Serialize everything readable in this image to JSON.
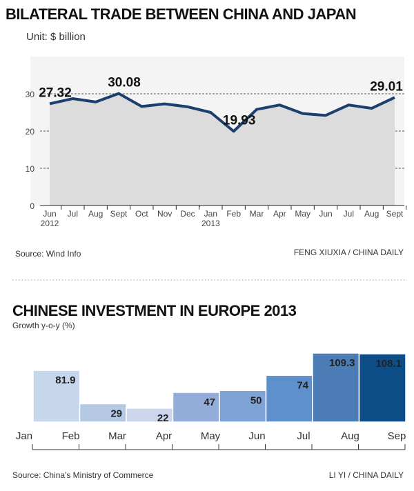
{
  "chart_data": [
    {
      "type": "line",
      "title": "BILATERAL TRADE BETWEEN CHINA AND JAPAN",
      "subtitle": "Unit: $ billion",
      "categories": [
        "Jun\n2012",
        "Jul",
        "Aug",
        "Sept",
        "Oct",
        "Nov",
        "Dec",
        "Jan\n2013",
        "Feb",
        "Mar",
        "Apr",
        "May",
        "Jun",
        "Jul",
        "Aug",
        "Sept"
      ],
      "values": [
        27.32,
        28.7,
        27.8,
        30.08,
        26.6,
        27.3,
        26.5,
        25.0,
        19.93,
        25.8,
        27.0,
        24.7,
        24.2,
        27.0,
        26.1,
        29.01
      ],
      "value_labels": [
        "27.32",
        null,
        null,
        "30.08",
        null,
        null,
        null,
        null,
        "19.93",
        null,
        null,
        null,
        null,
        null,
        null,
        "29.01"
      ],
      "color": "#1d3f6e",
      "area_color": "#dcdcdc",
      "ylim": [
        0,
        40
      ],
      "yticks": [
        0,
        10,
        20,
        30
      ],
      "grid": true,
      "source": "Source: Wind Info",
      "credit": "FENG XIUXIA / CHINA DAILY"
    },
    {
      "type": "bar",
      "title": "CHINESE INVESTMENT IN EUROPE 2013",
      "subtitle": "Growth y-o-y (%)",
      "categories": [
        "Jan",
        "Feb",
        "Mar",
        "Apr",
        "May",
        "Jun",
        "Jul",
        "Aug",
        "Sep"
      ],
      "values": [
        null,
        81.9,
        29,
        22,
        47,
        50,
        74,
        109.3,
        108.1
      ],
      "colors": [
        null,
        "#c6d6eb",
        "#b5c9e5",
        "#ccd5ec",
        "#93acd9",
        "#80a3d6",
        "#5e90cd",
        "#4c7cb5",
        "#0d4d88"
      ],
      "label_colors": [
        null,
        "#111",
        "#111",
        "#111",
        "#111",
        "#111",
        "#111",
        "#fff",
        "#fff"
      ],
      "source": "Source: China's Ministry of Commerce",
      "credit": "LI YI / CHINA DAILY"
    }
  ]
}
